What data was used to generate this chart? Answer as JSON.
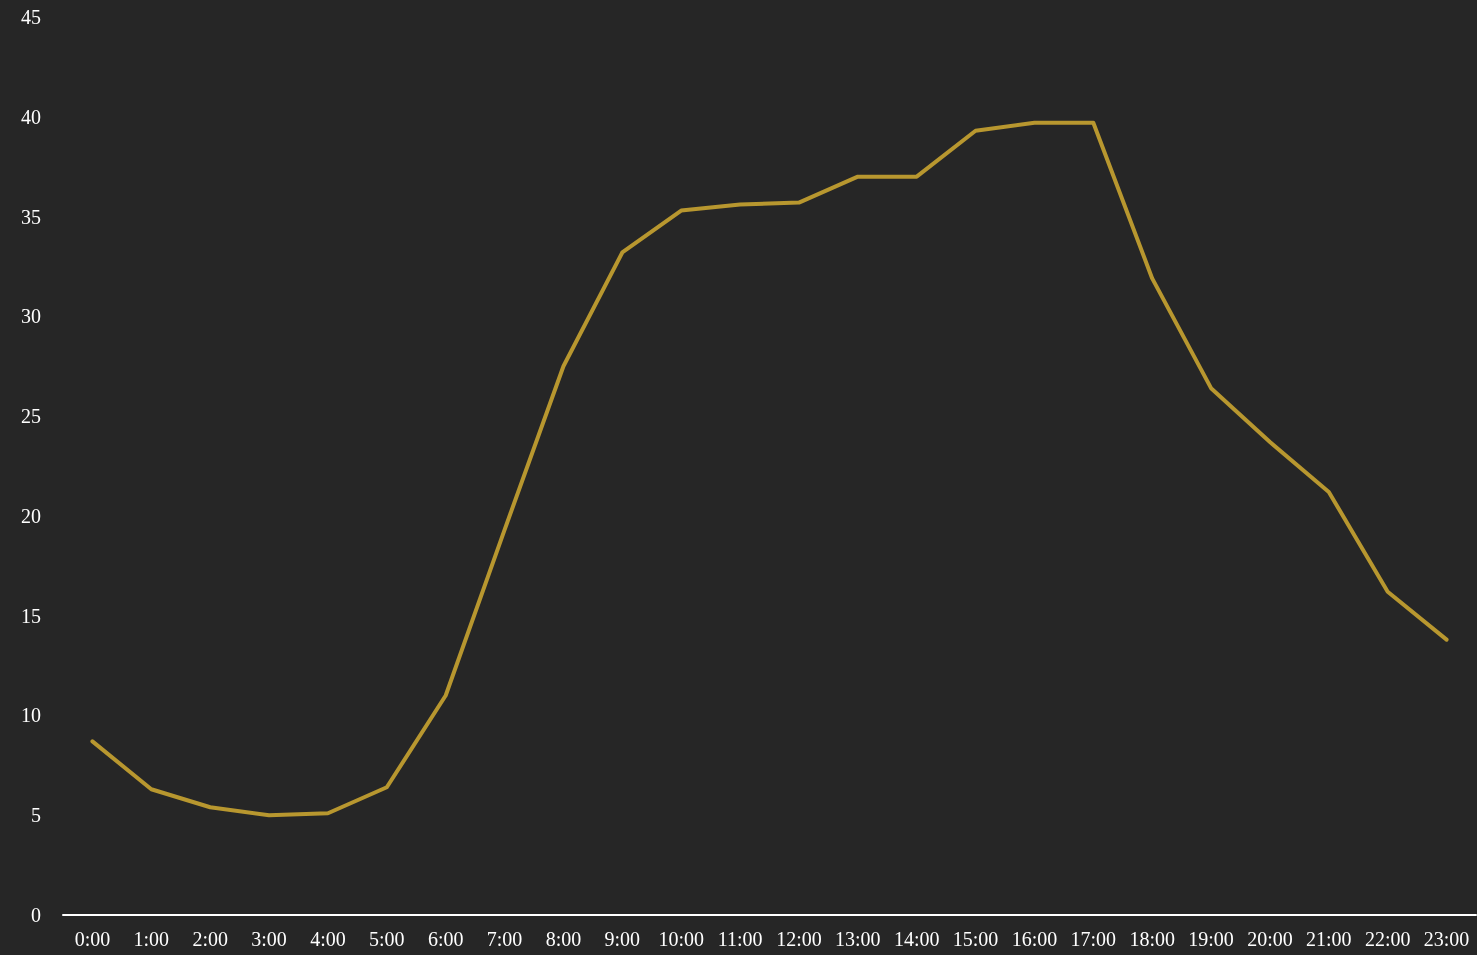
{
  "chart_data": {
    "type": "line",
    "categories": [
      "0:00",
      "1:00",
      "2:00",
      "3:00",
      "4:00",
      "5:00",
      "6:00",
      "7:00",
      "8:00",
      "9:00",
      "10:00",
      "11:00",
      "12:00",
      "13:00",
      "14:00",
      "15:00",
      "16:00",
      "17:00",
      "18:00",
      "19:00",
      "20:00",
      "21:00",
      "22:00",
      "23:00"
    ],
    "series": [
      {
        "color": "#b8972f",
        "values": [
          8.7,
          6.3,
          5.4,
          5.0,
          5.1,
          6.4,
          11.0,
          19.3,
          27.5,
          33.2,
          35.3,
          35.6,
          35.7,
          37.0,
          37.0,
          39.3,
          39.7,
          39.7,
          31.9,
          26.4,
          23.7,
          21.2,
          16.2,
          13.8
        ]
      }
    ],
    "ylim": [
      0,
      45
    ],
    "yticks": [
      0,
      5,
      10,
      15,
      20,
      25,
      30,
      35,
      40,
      45
    ],
    "grid": false,
    "marker": "none",
    "line_style": "solid"
  }
}
